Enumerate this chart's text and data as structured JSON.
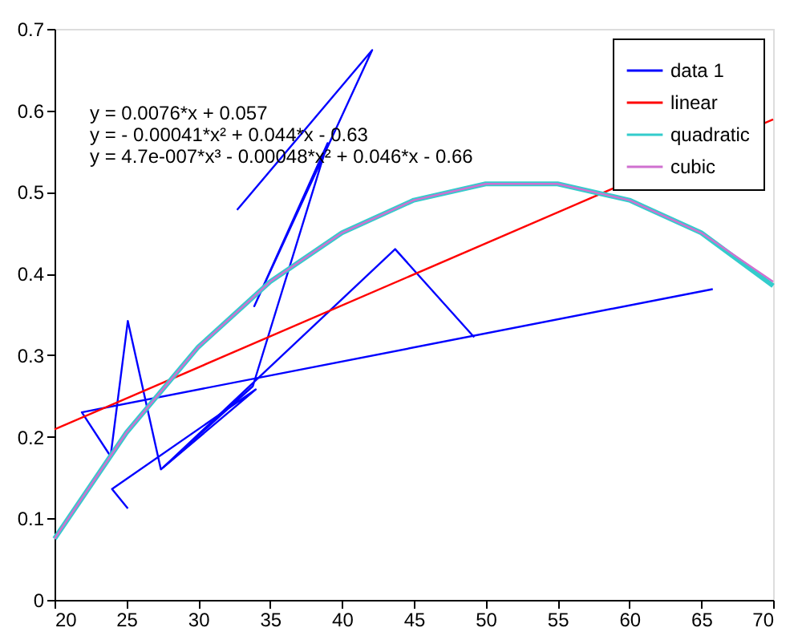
{
  "chart_data": {
    "type": "line",
    "xlim": [
      20,
      70
    ],
    "xticks": [
      20,
      25,
      30,
      35,
      40,
      45,
      50,
      55,
      60,
      65,
      70
    ],
    "ylim": [
      0,
      0.7
    ],
    "yticks": [
      0,
      0.1,
      0.2,
      0.3,
      0.4,
      0.5,
      0.6,
      0.7
    ],
    "grid": false,
    "legend": "top right",
    "marker": "none",
    "line_style": "solid",
    "annotations": [
      "y = 0.0076*x + 0.057",
      "y = - 0.00041*x² + 0.044*x - 0.63",
      "y = 4.7e-007*x³ - 0.00048*x² + 0.046*x - 0.66"
    ],
    "series": [
      {
        "name": "data 1",
        "color": "#0000ff",
        "x": [
          25.1,
          24.0,
          34.0,
          27.4,
          25.1,
          23.9,
          21.9,
          65.8,
          63.5,
          49.2,
          43.7,
          27.6,
          33.8,
          39.0,
          33.9,
          42.1,
          32.7
        ],
        "values": [
          0.112,
          0.136,
          0.258,
          0.16,
          0.342,
          0.176,
          0.23,
          0.381,
          null,
          0.322,
          0.43,
          0.163,
          0.262,
          0.56,
          0.36,
          0.674,
          0.478
        ]
      },
      {
        "name": "linear",
        "color": "#ff0000",
        "x": [
          20,
          70
        ],
        "values": [
          0.209,
          0.589
        ]
      },
      {
        "name": "quadratic",
        "color": "#33cccc",
        "x": [
          20,
          25,
          30,
          35,
          40,
          45,
          50,
          55,
          60,
          65,
          70
        ],
        "values": [
          0.075,
          0.205,
          0.31,
          0.39,
          0.45,
          0.49,
          0.51,
          0.51,
          0.49,
          0.45,
          0.385
        ]
      },
      {
        "name": "cubic",
        "color": "#d070d0",
        "x": [
          20,
          25,
          30,
          35,
          40,
          45,
          50,
          55,
          60,
          65,
          70
        ],
        "values": [
          0.075,
          0.205,
          0.31,
          0.39,
          0.45,
          0.49,
          0.51,
          0.51,
          0.49,
          0.45,
          0.39
        ]
      }
    ]
  }
}
